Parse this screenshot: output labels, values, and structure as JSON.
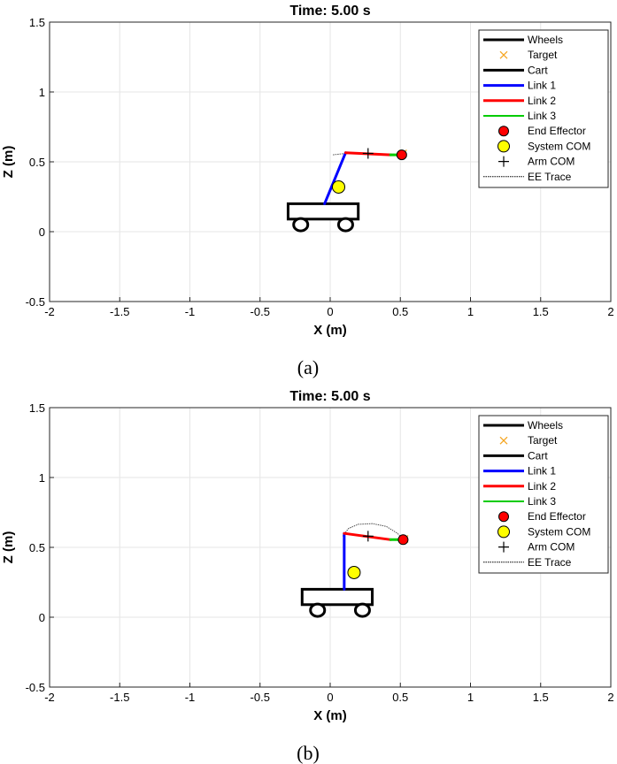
{
  "chart_data": [
    {
      "panel": "(a)",
      "type": "line",
      "title": "Time: 5.00 s",
      "xlabel": "X (m)",
      "ylabel": "Z (m)",
      "xlim": [
        -2,
        2
      ],
      "ylim": [
        -0.5,
        1.5
      ],
      "xticks": [
        "-2",
        "-1.5",
        "-1",
        "-0.5",
        "0",
        "0.5",
        "1",
        "1.5",
        "2"
      ],
      "yticks": [
        "-0.5",
        "0",
        "0.5",
        "1",
        "1.5"
      ],
      "grid": true,
      "legend_position": "top-right",
      "legend": [
        "Wheels",
        "Target",
        "Cart",
        "Link 1",
        "Link 2",
        "Link 3",
        "End Effector",
        "System COM",
        "Arm COM",
        "EE Trace"
      ],
      "cart": {
        "x_range": [
          -0.3,
          0.2
        ],
        "z_range": [
          0.09,
          0.2
        ]
      },
      "wheels": [
        {
          "x": -0.21,
          "z": 0.05
        },
        {
          "x": 0.11,
          "z": 0.05
        }
      ],
      "link1": {
        "x": [
          -0.04,
          0.11
        ],
        "z": [
          0.2,
          0.565
        ]
      },
      "link2": {
        "x": [
          0.11,
          0.43
        ],
        "z": [
          0.565,
          0.55
        ]
      },
      "link3": {
        "x": [
          0.43,
          0.51
        ],
        "z": [
          0.55,
          0.55
        ]
      },
      "end_effector": {
        "x": 0.51,
        "z": 0.55
      },
      "target": {
        "x": 0.52,
        "z": 0.56
      },
      "system_com": {
        "x": 0.06,
        "z": 0.32
      },
      "arm_com": {
        "x": 0.27,
        "z": 0.56
      },
      "ee_trace": {
        "x": [
          0.02,
          0.08,
          0.15,
          0.25,
          0.35,
          0.45,
          0.51
        ],
        "z": [
          0.55,
          0.557,
          0.56,
          0.56,
          0.558,
          0.555,
          0.55
        ]
      }
    },
    {
      "panel": "(b)",
      "type": "line",
      "title": "Time: 5.00 s",
      "xlabel": "X (m)",
      "ylabel": "Z (m)",
      "xlim": [
        -2,
        2
      ],
      "ylim": [
        -0.5,
        1.5
      ],
      "xticks": [
        "-2",
        "-1.5",
        "-1",
        "-0.5",
        "0",
        "0.5",
        "1",
        "1.5",
        "2"
      ],
      "yticks": [
        "-0.5",
        "0",
        "0.5",
        "1",
        "1.5"
      ],
      "grid": true,
      "legend_position": "top-right",
      "legend": [
        "Wheels",
        "Target",
        "Cart",
        "Link 1",
        "Link 2",
        "Link 3",
        "End Effector",
        "System COM",
        "Arm COM",
        "EE Trace"
      ],
      "cart": {
        "x_range": [
          -0.2,
          0.3
        ],
        "z_range": [
          0.09,
          0.2
        ]
      },
      "wheels": [
        {
          "x": -0.09,
          "z": 0.05
        },
        {
          "x": 0.23,
          "z": 0.05
        }
      ],
      "link1": {
        "x": [
          0.1,
          0.1
        ],
        "z": [
          0.2,
          0.6
        ]
      },
      "link2": {
        "x": [
          0.1,
          0.43
        ],
        "z": [
          0.6,
          0.555
        ]
      },
      "link3": {
        "x": [
          0.43,
          0.51
        ],
        "z": [
          0.555,
          0.555
        ]
      },
      "end_effector": {
        "x": 0.52,
        "z": 0.555
      },
      "target": {
        "x": 0.53,
        "z": 0.56
      },
      "system_com": {
        "x": 0.17,
        "z": 0.32
      },
      "arm_com": {
        "x": 0.27,
        "z": 0.58
      },
      "ee_trace": {
        "x": [
          0.09,
          0.13,
          0.2,
          0.3,
          0.4,
          0.48,
          0.52
        ],
        "z": [
          0.58,
          0.635,
          0.665,
          0.67,
          0.65,
          0.6,
          0.555
        ]
      }
    }
  ],
  "captions": [
    "(a)",
    "(b)"
  ],
  "colors": {
    "wheels": "#000000",
    "target": "#f5a623",
    "cart": "#000000",
    "link1": "#0000ff",
    "link2": "#ff0000",
    "link3": "#00cc00",
    "end_effector": "#ff0000",
    "system_com": "#ffff00",
    "arm_com": "#000000",
    "ee_trace": "#000000",
    "grid": "#e6e6e6"
  }
}
